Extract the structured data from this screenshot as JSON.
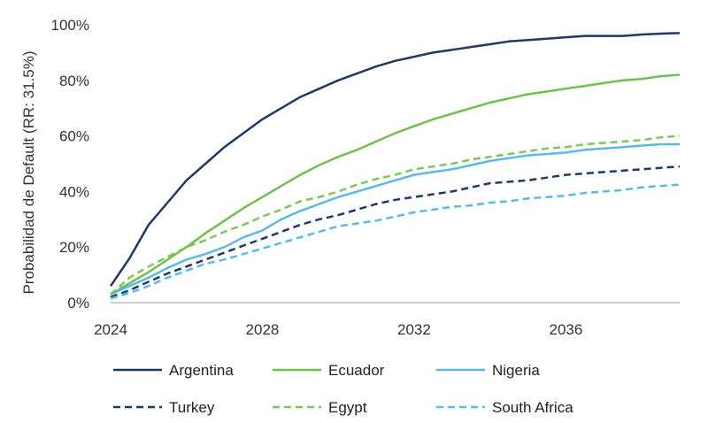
{
  "chart_data": {
    "type": "line",
    "title": "",
    "xlabel": "",
    "ylabel": "Probabilidad de Default (RR: 31.5%)",
    "xlim": [
      2024,
      2039
    ],
    "ylim": [
      0,
      100
    ],
    "x_ticks": [
      2024,
      2028,
      2032,
      2036
    ],
    "x_tick_labels": [
      "2024",
      "2028",
      "2032",
      "2036"
    ],
    "y_ticks": [
      0,
      20,
      40,
      60,
      80,
      100
    ],
    "y_tick_labels": [
      "0%",
      "20%",
      "40%",
      "60%",
      "80%",
      "100%"
    ],
    "grid": false,
    "legend_position": "bottom",
    "x": [
      2024,
      2024.5,
      2025,
      2025.5,
      2026,
      2026.5,
      2027,
      2027.5,
      2028,
      2028.5,
      2029,
      2029.5,
      2030,
      2030.5,
      2031,
      2031.5,
      2032,
      2032.5,
      2033,
      2033.5,
      2034,
      2034.5,
      2035,
      2035.5,
      2036,
      2036.5,
      2037,
      2037.5,
      2038,
      2038.5,
      2039
    ],
    "series": [
      {
        "name": "Argentina",
        "color": "#1f3864",
        "dash": "solid",
        "values": [
          6,
          16,
          28,
          36,
          44,
          50,
          56,
          61,
          66,
          70,
          74,
          77,
          80,
          82.5,
          85,
          87,
          88.5,
          90,
          91,
          92,
          93,
          94,
          94.5,
          95,
          95.5,
          96,
          96,
          96,
          96.5,
          96.8,
          97
        ]
      },
      {
        "name": "Ecuador",
        "color": "#6cc24a",
        "dash": "solid",
        "values": [
          3,
          7,
          11,
          15.5,
          20,
          25,
          29.5,
          34,
          38,
          42,
          46,
          49.5,
          52.5,
          55,
          58,
          61,
          63.5,
          66,
          68,
          70,
          72,
          73.5,
          75,
          76,
          77,
          78,
          79,
          80,
          80.5,
          81.5,
          82
        ]
      },
      {
        "name": "Nigeria",
        "color": "#5bb8ec",
        "dash": "solid",
        "values": [
          3,
          6,
          9,
          12.5,
          15.5,
          17.5,
          20,
          23.5,
          26,
          30,
          33,
          35.5,
          38,
          40,
          42,
          44,
          46,
          47,
          48,
          49.5,
          51,
          52,
          53,
          53.5,
          54,
          55,
          55.5,
          56,
          56.5,
          57,
          57
        ]
      },
      {
        "name": "Turkey",
        "color": "#1f3864",
        "dash": "dashed",
        "values": [
          2,
          4.5,
          7.5,
          10.5,
          13,
          15.5,
          18,
          20.5,
          23,
          25.5,
          28,
          30,
          31.5,
          33.5,
          35.5,
          37,
          38,
          39,
          40,
          41.5,
          43,
          43.5,
          44,
          45,
          46,
          46.5,
          47,
          47.5,
          48,
          48.5,
          49
        ]
      },
      {
        "name": "Egypt",
        "color": "#7dc75a",
        "dash": "dashed",
        "values": [
          3,
          9,
          13,
          16.5,
          20,
          22.5,
          25.5,
          28,
          31,
          33.5,
          36.5,
          38,
          40,
          42.5,
          44.5,
          46,
          48,
          49,
          50,
          51.5,
          52.5,
          53.5,
          54.5,
          55.5,
          56,
          57,
          57.5,
          58,
          58.5,
          59.5,
          60
        ]
      },
      {
        "name": "South Africa",
        "color": "#5bb8ec",
        "dash": "dashed",
        "values": [
          1.5,
          3.5,
          6,
          9,
          11.5,
          14,
          15.5,
          17.5,
          19.5,
          21.5,
          23.5,
          25.5,
          27.5,
          28.5,
          29.5,
          31,
          32.5,
          33.5,
          34.5,
          35,
          36,
          36.5,
          37.5,
          38,
          38.5,
          39.5,
          40,
          40.5,
          41.5,
          42,
          42.5
        ]
      }
    ]
  }
}
